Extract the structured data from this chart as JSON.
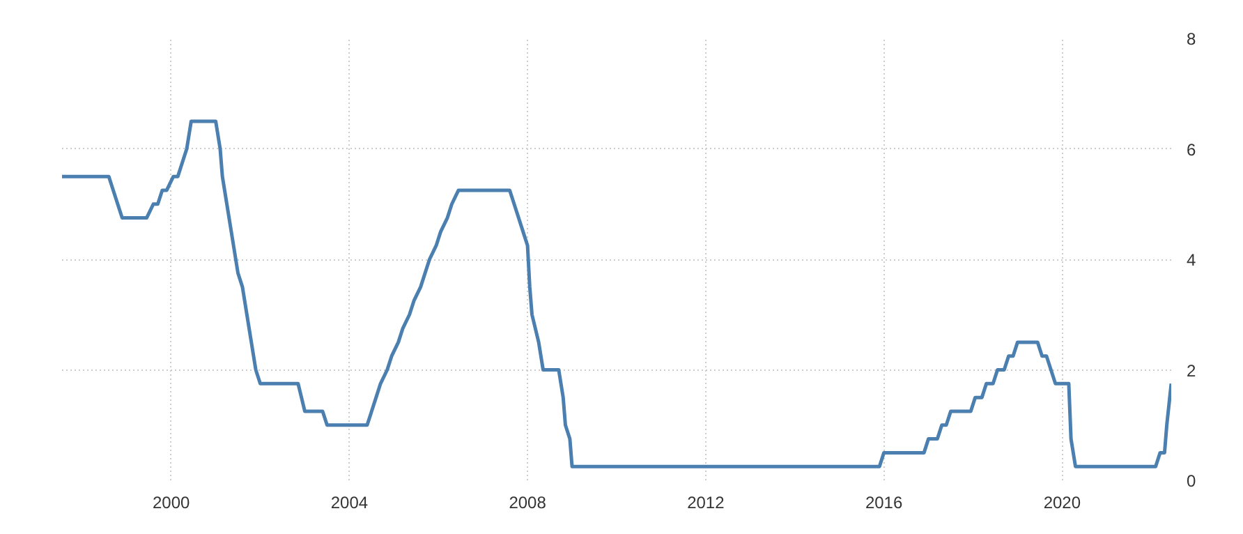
{
  "chart_data": {
    "type": "line",
    "xlim": [
      1997.55,
      2022.45
    ],
    "ylim": [
      0,
      8
    ],
    "xticks": [
      2000,
      2004,
      2008,
      2012,
      2016,
      2020
    ],
    "yticks": [
      0,
      2,
      4,
      6,
      8
    ],
    "grid": true,
    "marker": "none",
    "line_style": "solid",
    "x": [
      1997.55,
      1998.6,
      1998.7,
      1998.8,
      1998.9,
      1999.45,
      1999.6,
      1999.7,
      1999.8,
      1999.9,
      2000.05,
      2000.15,
      2000.25,
      2000.35,
      2000.45,
      2001.0,
      2001.1,
      2001.15,
      2001.25,
      2001.35,
      2001.4,
      2001.5,
      2001.6,
      2001.7,
      2001.8,
      2001.9,
      2002.0,
      2002.85,
      2003.0,
      2003.4,
      2003.5,
      2004.4,
      2004.5,
      2004.6,
      2004.7,
      2004.85,
      2004.95,
      2005.1,
      2005.2,
      2005.35,
      2005.45,
      2005.6,
      2005.7,
      2005.8,
      2005.95,
      2006.05,
      2006.2,
      2006.3,
      2006.45,
      2007.6,
      2007.7,
      2007.8,
      2007.9,
      2008.0,
      2008.05,
      2008.1,
      2008.25,
      2008.35,
      2008.7,
      2008.8,
      2008.85,
      2008.95,
      2009.0,
      2015.9,
      2016.0,
      2016.9,
      2017.0,
      2017.2,
      2017.3,
      2017.4,
      2017.5,
      2017.95,
      2018.05,
      2018.2,
      2018.3,
      2018.45,
      2018.55,
      2018.7,
      2018.8,
      2018.9,
      2019.0,
      2019.45,
      2019.55,
      2019.65,
      2019.75,
      2019.85,
      2020.15,
      2020.2,
      2020.3,
      2022.1,
      2022.2,
      2022.3,
      2022.35,
      2022.45
    ],
    "series": [
      {
        "color": "#4a7fb0",
        "values": [
          5.5,
          5.5,
          5.25,
          5.0,
          4.75,
          4.75,
          5.0,
          5.0,
          5.25,
          5.25,
          5.5,
          5.5,
          5.75,
          6.0,
          6.5,
          6.5,
          6.0,
          5.5,
          5.0,
          4.5,
          4.25,
          3.75,
          3.5,
          3.0,
          2.5,
          2.0,
          1.75,
          1.75,
          1.25,
          1.25,
          1.0,
          1.0,
          1.25,
          1.5,
          1.75,
          2.0,
          2.25,
          2.5,
          2.75,
          3.0,
          3.25,
          3.5,
          3.75,
          4.0,
          4.25,
          4.5,
          4.75,
          5.0,
          5.25,
          5.25,
          5.0,
          4.75,
          4.5,
          4.25,
          3.5,
          3.0,
          2.5,
          2.0,
          2.0,
          1.5,
          1.0,
          0.75,
          0.25,
          0.25,
          0.5,
          0.5,
          0.75,
          0.75,
          1.0,
          1.0,
          1.25,
          1.25,
          1.5,
          1.5,
          1.75,
          1.75,
          2.0,
          2.0,
          2.25,
          2.25,
          2.5,
          2.5,
          2.25,
          2.25,
          2.0,
          1.75,
          1.75,
          0.75,
          0.25,
          0.25,
          0.5,
          0.5,
          1.0,
          1.75
        ]
      }
    ]
  }
}
